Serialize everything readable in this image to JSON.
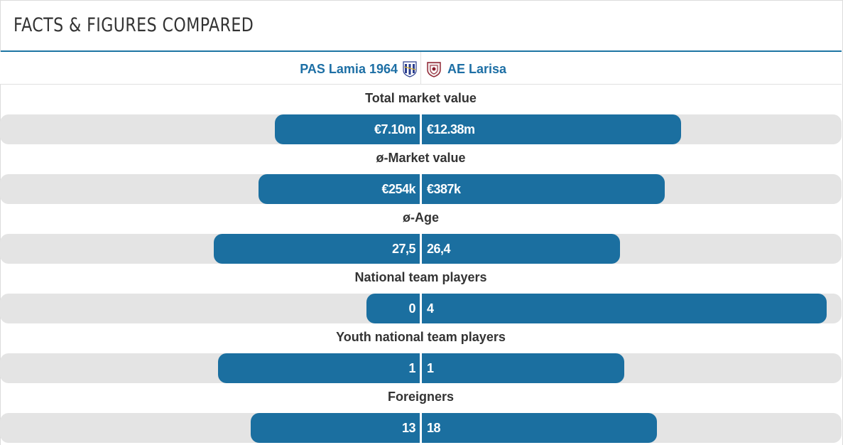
{
  "header": {
    "title": "FACTS & FIGURES COMPARED"
  },
  "teams": {
    "left": {
      "name": "PAS Lamia 1964",
      "crest_icon": "pas-lamia-crest-icon"
    },
    "right": {
      "name": "AE Larisa",
      "crest_icon": "ae-larisa-crest-icon"
    }
  },
  "colors": {
    "bar": "#1b6fa0",
    "track": "#e4e4e4",
    "accent": "#1d75a3",
    "team_link": "#1d6fa5"
  },
  "stats": [
    {
      "label": "Total market value",
      "left": "€7.10m",
      "right": "€12.38m",
      "left_fraction": 0.36,
      "right_fraction": 0.64
    },
    {
      "label": "ø-Market value",
      "left": "€254k",
      "right": "€387k",
      "left_fraction": 0.4,
      "right_fraction": 0.6
    },
    {
      "label": "ø-Age",
      "left": "27,5",
      "right": "26,4",
      "left_fraction": 0.51,
      "right_fraction": 0.49
    },
    {
      "label": "National team players",
      "left": "0",
      "right": "4",
      "left_fraction": 0.0,
      "right_fraction": 1.0
    },
    {
      "label": "Youth national team players",
      "left": "1",
      "right": "1",
      "left_fraction": 0.5,
      "right_fraction": 0.5
    },
    {
      "label": "Foreigners",
      "left": "13",
      "right": "18",
      "left_fraction": 0.42,
      "right_fraction": 0.58
    }
  ]
}
